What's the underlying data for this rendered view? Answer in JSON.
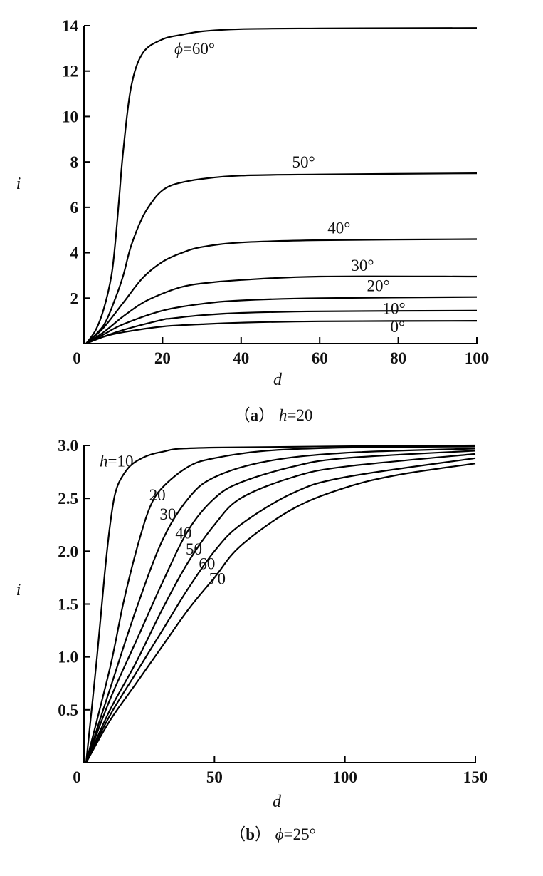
{
  "chart_data": [
    {
      "type": "line",
      "caption": "（a）h=20",
      "caption_parts": {
        "prefix": "（",
        "letter": "a",
        "suffix": "）",
        "var": "h",
        "value": "=20"
      },
      "xlabel": "d",
      "ylabel": "i",
      "xlim": [
        0,
        100
      ],
      "ylim": [
        0,
        14
      ],
      "xticks": [
        "0",
        "20",
        "40",
        "60",
        "80",
        "100"
      ],
      "yticks": [
        "2",
        "4",
        "6",
        "8",
        "10",
        "12",
        "14"
      ],
      "grid": false,
      "series": [
        {
          "name": "ϕ=60°",
          "x": [
            0,
            3,
            5,
            7,
            8,
            9,
            10,
            12,
            15,
            20,
            25,
            30,
            40,
            60,
            100
          ],
          "y": [
            0,
            0.6,
            1.5,
            3,
            4.5,
            6.5,
            8.5,
            11.3,
            12.8,
            13.4,
            13.6,
            13.75,
            13.85,
            13.88,
            13.9
          ],
          "label_at": [
            23,
            12.75
          ]
        },
        {
          "name": "50°",
          "x": [
            0,
            5,
            8,
            10,
            12,
            15,
            18,
            20,
            22,
            25,
            30,
            40,
            60,
            100
          ],
          "y": [
            0,
            0.8,
            2,
            3,
            4.3,
            5.6,
            6.4,
            6.75,
            6.95,
            7.1,
            7.25,
            7.4,
            7.45,
            7.5
          ],
          "label_at": [
            53,
            7.75
          ]
        },
        {
          "name": "40°",
          "x": [
            0,
            5,
            10,
            15,
            20,
            25,
            30,
            40,
            60,
            100
          ],
          "y": [
            0,
            0.7,
            1.8,
            2.9,
            3.6,
            4.0,
            4.25,
            4.45,
            4.55,
            4.6
          ],
          "label_at": [
            62,
            4.85
          ]
        },
        {
          "name": "30°",
          "x": [
            0,
            5,
            10,
            15,
            20,
            25,
            30,
            40,
            60,
            100
          ],
          "y": [
            0,
            0.5,
            1.2,
            1.8,
            2.2,
            2.5,
            2.65,
            2.8,
            2.95,
            2.95
          ],
          "label_at": [
            68,
            3.2
          ]
        },
        {
          "name": "20°",
          "x": [
            0,
            5,
            10,
            20,
            30,
            40,
            60,
            100
          ],
          "y": [
            0,
            0.4,
            0.85,
            1.45,
            1.75,
            1.9,
            2.0,
            2.05
          ],
          "label_at": [
            72,
            2.3
          ]
        },
        {
          "name": "10°",
          "x": [
            0,
            5,
            10,
            20,
            22,
            30,
            40,
            60,
            100
          ],
          "y": [
            0,
            0.3,
            0.6,
            1.05,
            1.1,
            1.25,
            1.35,
            1.42,
            1.45
          ],
          "label_at": [
            76,
            1.3
          ]
        },
        {
          "name": "0°",
          "x": [
            0,
            5,
            10,
            20,
            30,
            40,
            60,
            100
          ],
          "y": [
            0,
            0.3,
            0.5,
            0.75,
            0.85,
            0.92,
            0.98,
            1.0
          ],
          "label_at": [
            78,
            0.5
          ]
        }
      ]
    },
    {
      "type": "line",
      "caption": "（b）ϕ=25°",
      "caption_parts": {
        "prefix": "（",
        "letter": "b",
        "suffix": "）",
        "var": "ϕ",
        "value": "=25°"
      },
      "xlabel": "d",
      "ylabel": "i",
      "xlim": [
        0,
        150
      ],
      "ylim": [
        0,
        3.0
      ],
      "xticks": [
        "0",
        "50",
        "100",
        "150"
      ],
      "yticks": [
        "0.5",
        "1.0",
        "1.5",
        "2.0",
        "2.5",
        "3.0"
      ],
      "grid": false,
      "series": [
        {
          "name": "h=10",
          "x": [
            0,
            5,
            8,
            10,
            12,
            15,
            20,
            30,
            50,
            150
          ],
          "y": [
            0,
            1.0,
            1.8,
            2.25,
            2.55,
            2.72,
            2.85,
            2.94,
            2.98,
            3.0
          ],
          "label_at": [
            6,
            2.8
          ]
        },
        {
          "name": "20",
          "x": [
            0,
            10,
            15,
            20,
            25,
            30,
            40,
            50,
            70,
            100,
            150
          ],
          "y": [
            0,
            0.9,
            1.5,
            2.0,
            2.4,
            2.6,
            2.8,
            2.88,
            2.95,
            2.98,
            2.99
          ],
          "label_at": [
            25,
            2.48
          ]
        },
        {
          "name": "30",
          "x": [
            0,
            10,
            20,
            30,
            40,
            50,
            70,
            100,
            150
          ],
          "y": [
            0,
            0.7,
            1.45,
            2.1,
            2.5,
            2.7,
            2.85,
            2.93,
            2.97
          ],
          "label_at": [
            29,
            2.3
          ]
        },
        {
          "name": "40",
          "x": [
            0,
            10,
            20,
            30,
            40,
            50,
            60,
            80,
            100,
            150
          ],
          "y": [
            0,
            0.6,
            1.15,
            1.7,
            2.2,
            2.5,
            2.65,
            2.8,
            2.88,
            2.95
          ],
          "label_at": [
            35,
            2.12
          ]
        },
        {
          "name": "50",
          "x": [
            0,
            10,
            20,
            30,
            40,
            50,
            60,
            80,
            100,
            150
          ],
          "y": [
            0,
            0.5,
            0.95,
            1.45,
            1.9,
            2.25,
            2.5,
            2.7,
            2.8,
            2.92
          ],
          "label_at": [
            39,
            1.97
          ]
        },
        {
          "name": "60",
          "x": [
            0,
            10,
            20,
            30,
            40,
            50,
            60,
            80,
            100,
            150
          ],
          "y": [
            0,
            0.45,
            0.85,
            1.25,
            1.65,
            2.0,
            2.25,
            2.55,
            2.7,
            2.88
          ],
          "label_at": [
            44,
            1.83
          ]
        },
        {
          "name": "70",
          "x": [
            0,
            10,
            20,
            30,
            40,
            50,
            60,
            80,
            100,
            120,
            150
          ],
          "y": [
            0,
            0.4,
            0.75,
            1.1,
            1.45,
            1.75,
            2.05,
            2.4,
            2.6,
            2.72,
            2.83
          ],
          "label_at": [
            48,
            1.69
          ]
        }
      ]
    }
  ]
}
